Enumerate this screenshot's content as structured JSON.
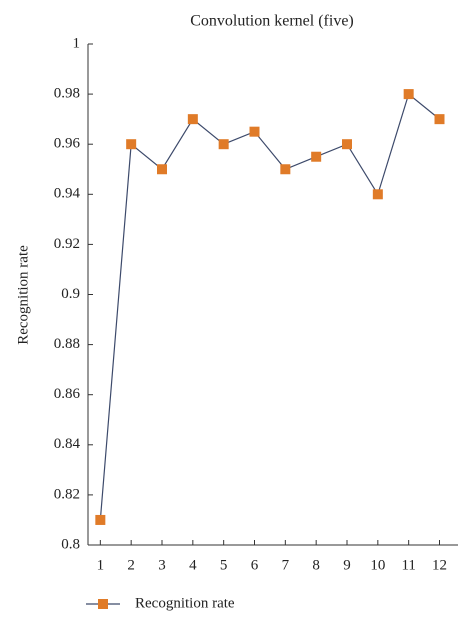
{
  "chart_data": {
    "type": "line",
    "title": "Convolution kernel (five)",
    "y_label": "Recognition rate",
    "x": [
      1,
      2,
      3,
      4,
      5,
      6,
      7,
      8,
      9,
      10,
      11,
      12
    ],
    "xlim": [
      0.6,
      12.6
    ],
    "xticks": [
      1,
      2,
      3,
      4,
      5,
      6,
      7,
      8,
      9,
      10,
      11,
      12
    ],
    "ylim": [
      0.8,
      1
    ],
    "yticks": [
      0.8,
      0.82,
      0.84,
      0.86,
      0.88,
      0.9,
      0.92,
      0.94,
      0.96,
      0.98,
      1
    ],
    "series": [
      {
        "name": "Recognition rate",
        "color": "#3d4a6b",
        "marker_color": "#e07b28",
        "values": [
          0.81,
          0.96,
          0.95,
          0.97,
          0.96,
          0.965,
          0.95,
          0.955,
          0.96,
          0.94,
          0.98,
          0.97
        ]
      }
    ],
    "legend": "bottom-left",
    "grid": false
  }
}
